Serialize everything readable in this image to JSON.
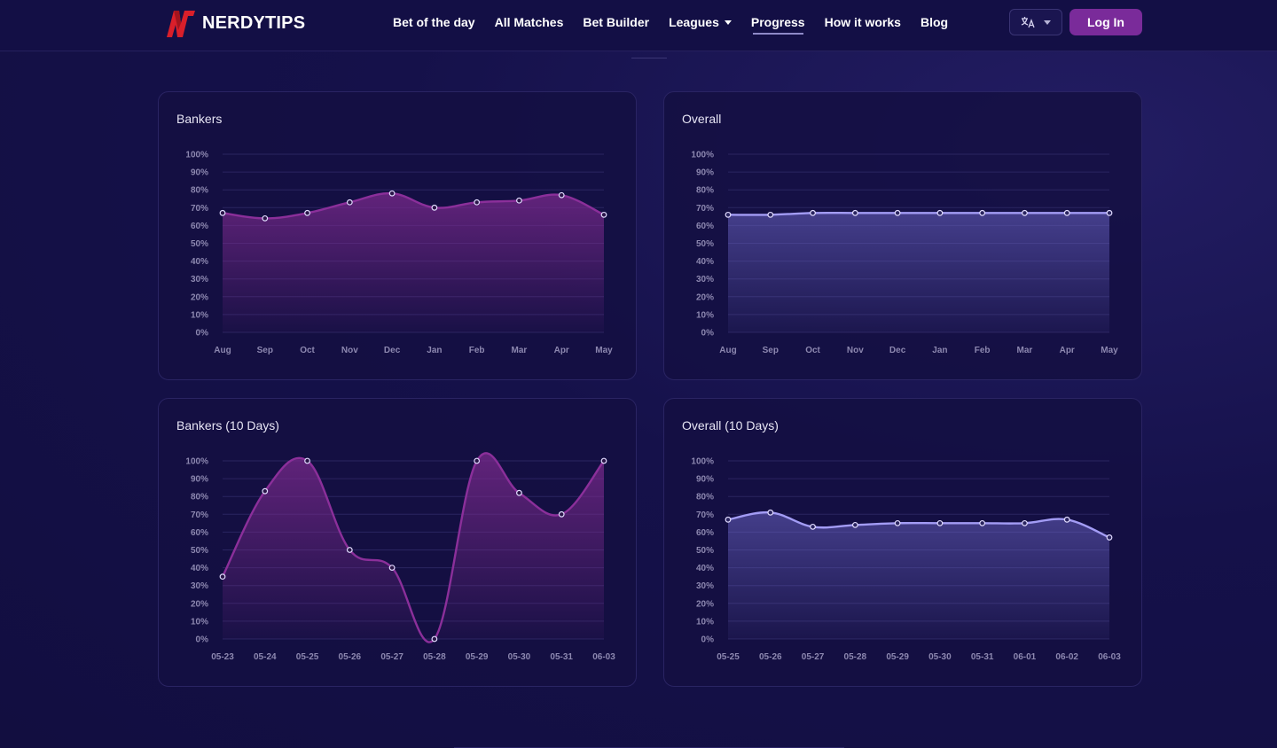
{
  "header": {
    "logo_text": "NERDYTIPS",
    "nav": [
      {
        "label": "Bet of the day",
        "name": "nav-bet-of-the-day"
      },
      {
        "label": "All Matches",
        "name": "nav-all-matches"
      },
      {
        "label": "Bet Builder",
        "name": "nav-bet-builder"
      },
      {
        "label": "Leagues",
        "name": "nav-leagues",
        "dropdown": true
      },
      {
        "label": "Progress",
        "name": "nav-progress",
        "active": true
      },
      {
        "label": "How it works",
        "name": "nav-how-it-works"
      },
      {
        "label": "Blog",
        "name": "nav-blog"
      }
    ],
    "language_icon": "translate-icon",
    "login_label": "Log In"
  },
  "colors": {
    "purple_series": "#8b2f9a",
    "lavender_series": "#a39cf5",
    "login_button": "#7a2b9a",
    "logo_red": "#d91f2a"
  },
  "chart_data": [
    {
      "type": "area",
      "title": "Bankers",
      "color": "purple",
      "categories": [
        "Aug",
        "Sep",
        "Oct",
        "Nov",
        "Dec",
        "Jan",
        "Feb",
        "Mar",
        "Apr",
        "May"
      ],
      "values": [
        67,
        64,
        67,
        73,
        78,
        70,
        73,
        74,
        77,
        66
      ],
      "ylim": [
        0,
        100
      ],
      "yticks": [
        "0%",
        "10%",
        "20%",
        "30%",
        "40%",
        "50%",
        "60%",
        "70%",
        "80%",
        "90%",
        "100%"
      ]
    },
    {
      "type": "area",
      "title": "Overall",
      "color": "lavender",
      "categories": [
        "Aug",
        "Sep",
        "Oct",
        "Nov",
        "Dec",
        "Jan",
        "Feb",
        "Mar",
        "Apr",
        "May"
      ],
      "values": [
        66,
        66,
        67,
        67,
        67,
        67,
        67,
        67,
        67,
        67
      ],
      "ylim": [
        0,
        100
      ],
      "yticks": [
        "0%",
        "10%",
        "20%",
        "30%",
        "40%",
        "50%",
        "60%",
        "70%",
        "80%",
        "90%",
        "100%"
      ]
    },
    {
      "type": "area",
      "title": "Bankers (10 Days)",
      "color": "purple",
      "categories": [
        "05-23",
        "05-24",
        "05-25",
        "05-26",
        "05-27",
        "05-28",
        "05-29",
        "05-30",
        "05-31",
        "06-03"
      ],
      "values": [
        35,
        83,
        100,
        50,
        40,
        0,
        100,
        82,
        70,
        100
      ],
      "ylim": [
        0,
        100
      ],
      "yticks": [
        "0%",
        "10%",
        "20%",
        "30%",
        "40%",
        "50%",
        "60%",
        "70%",
        "80%",
        "90%",
        "100%"
      ]
    },
    {
      "type": "area",
      "title": "Overall (10 Days)",
      "color": "lavender",
      "categories": [
        "05-25",
        "05-26",
        "05-27",
        "05-28",
        "05-29",
        "05-30",
        "05-31",
        "06-01",
        "06-02",
        "06-03"
      ],
      "values": [
        67,
        71,
        63,
        64,
        65,
        65,
        65,
        65,
        67,
        57
      ],
      "ylim": [
        0,
        100
      ],
      "yticks": [
        "0%",
        "10%",
        "20%",
        "30%",
        "40%",
        "50%",
        "60%",
        "70%",
        "80%",
        "90%",
        "100%"
      ]
    }
  ]
}
